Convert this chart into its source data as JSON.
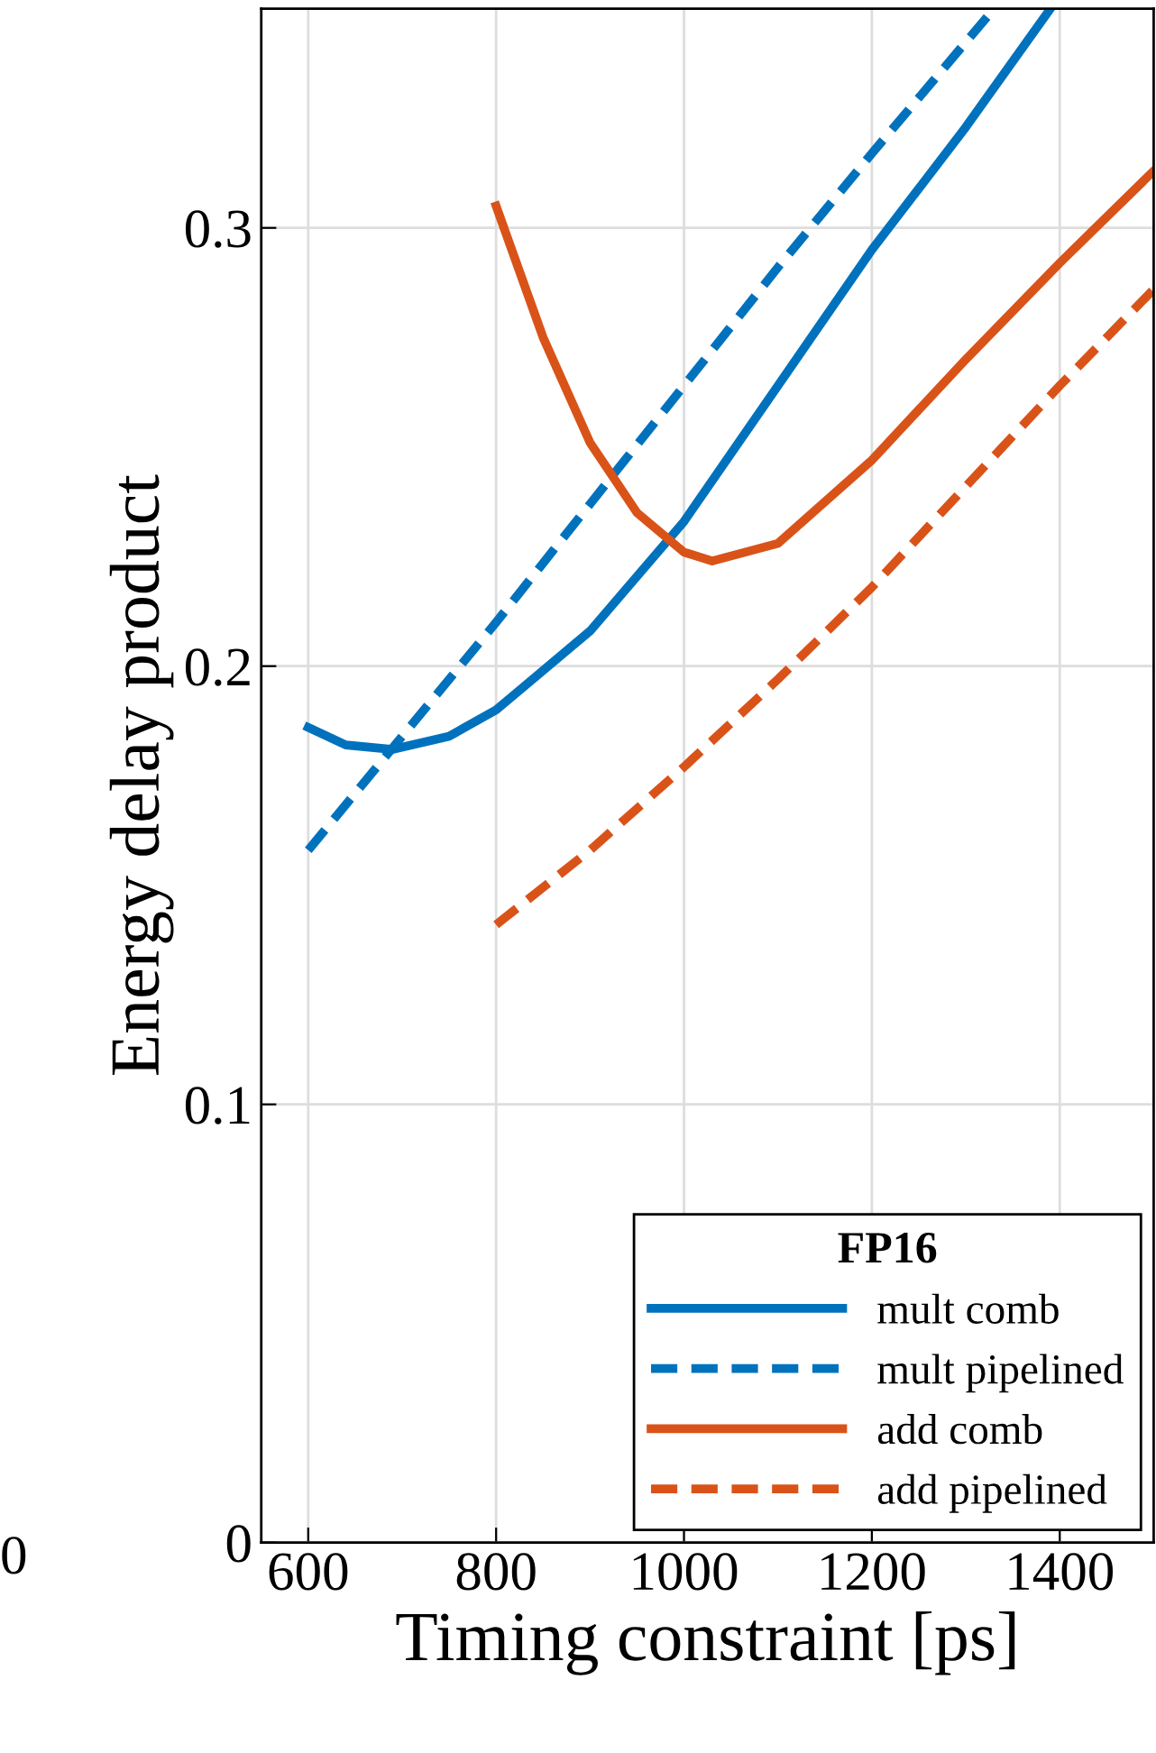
{
  "chart_data": {
    "type": "line",
    "xlabel": "Timing constraint [ps]",
    "ylabel": "Energy delay product",
    "legend_title": "FP16",
    "xlim": [
      550,
      1500
    ],
    "ylim": [
      0,
      0.35
    ],
    "xticks": [
      600,
      800,
      1000,
      1200,
      1400
    ],
    "yticks": [
      0,
      0.1,
      0.2,
      0.3
    ],
    "grid": true,
    "legend": "bottom right",
    "marker": "none",
    "annotations": [
      "0"
    ],
    "series": [
      {
        "name": "mult comb",
        "color": "#0072bd",
        "line_style": "solid",
        "x": [
          600,
          640,
          690,
          750,
          800,
          900,
          1000,
          1100,
          1200,
          1300,
          1390
        ],
        "values": [
          0.186,
          0.182,
          0.181,
          0.184,
          0.19,
          0.208,
          0.233,
          0.264,
          0.295,
          0.323,
          0.35
        ]
      },
      {
        "name": "mult pipelined",
        "color": "#0072bd",
        "line_style": "dashed",
        "x": [
          600,
          700,
          800,
          900,
          1000,
          1100,
          1200,
          1330
        ],
        "values": [
          0.158,
          0.184,
          0.21,
          0.237,
          0.264,
          0.291,
          0.317,
          0.35
        ]
      },
      {
        "name": "add comb",
        "color": "#d95319",
        "line_style": "solid",
        "x": [
          800,
          850,
          900,
          950,
          1000,
          1030,
          1100,
          1200,
          1300,
          1400,
          1500
        ],
        "values": [
          0.305,
          0.275,
          0.251,
          0.235,
          0.226,
          0.224,
          0.228,
          0.247,
          0.27,
          0.292,
          0.313
        ]
      },
      {
        "name": "add pipelined",
        "color": "#d95319",
        "line_style": "dashed",
        "x": [
          800,
          900,
          1000,
          1100,
          1200,
          1300,
          1400,
          1500
        ],
        "values": [
          0.141,
          0.158,
          0.177,
          0.197,
          0.218,
          0.241,
          0.264,
          0.286
        ]
      }
    ]
  }
}
